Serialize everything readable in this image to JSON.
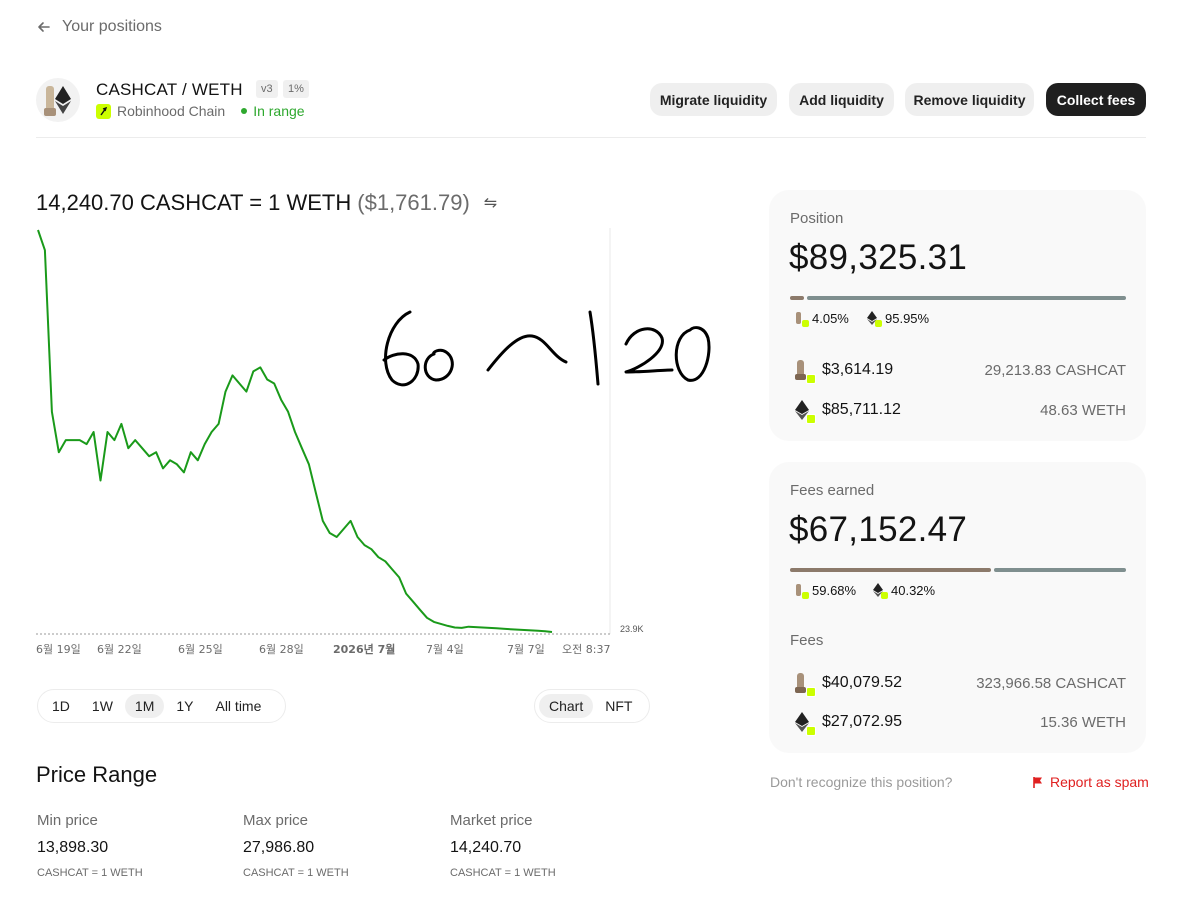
{
  "nav": {
    "back_label": "Your positions"
  },
  "header": {
    "pair": "CASHCAT / WETH",
    "version": "v3",
    "fee_tier": "1%",
    "chain": "Robinhood Chain",
    "status": "In range",
    "buttons": {
      "migrate": "Migrate liquidity",
      "add": "Add liquidity",
      "remove": "Remove liquidity",
      "collect": "Collect fees"
    }
  },
  "price": {
    "rate": "14,240.70 CASHCAT = 1 WETH",
    "usd": "($1,761.79)"
  },
  "chart_data": {
    "type": "line",
    "x_ticks": [
      "6월 19일",
      "6월 22일",
      "6월 25일",
      "6월 28일",
      "2026년 7월",
      "7월 4일",
      "7월 7일",
      "오전 8:37"
    ],
    "right_axis_label": "23.9K",
    "series": [
      {
        "values": [
          100,
          95,
          55,
          45,
          48,
          48,
          48,
          47,
          50,
          38,
          50,
          48,
          52,
          46,
          48,
          46,
          44,
          45,
          41,
          43,
          42,
          40,
          45,
          43,
          47,
          50,
          52,
          60,
          64,
          62,
          60,
          65,
          66,
          63,
          62,
          58,
          55,
          50,
          46,
          42,
          35,
          28,
          25,
          24,
          26,
          28,
          24,
          22,
          21,
          19,
          18,
          16,
          14,
          10,
          8,
          6,
          4,
          3,
          2.5,
          2,
          1.6,
          1.5,
          1.8,
          1.7,
          1.6,
          1.5,
          1.4,
          1.3,
          1.2,
          1.1,
          1.0,
          0.9,
          0.8,
          0.7,
          0.5
        ]
      }
    ],
    "color": "#1a9a1a"
  },
  "timeframes": [
    "1D",
    "1W",
    "1M",
    "1Y",
    "All time"
  ],
  "timeframe_active": "1M",
  "view_toggle": [
    "Chart",
    "NFT"
  ],
  "view_active": "Chart",
  "range": {
    "title": "Price Range",
    "min_label": "Min price",
    "min_value": "13,898.30",
    "max_label": "Max price",
    "max_value": "27,986.80",
    "market_label": "Market price",
    "market_value": "14,240.70",
    "unit": "CASHCAT = 1 WETH"
  },
  "position": {
    "label": "Position",
    "value": "$89,325.31",
    "cashcat_pct": "4.05%",
    "weth_pct": "95.95%",
    "cashcat_share": 0.0405,
    "cashcat_usd": "$3,614.19",
    "cashcat_amount": "29,213.83 CASHCAT",
    "weth_usd": "$85,711.12",
    "weth_amount": "48.63 WETH"
  },
  "fees": {
    "label": "Fees earned",
    "value": "$67,152.47",
    "cashcat_pct": "59.68%",
    "weth_pct": "40.32%",
    "cashcat_share": 0.5968,
    "section_label": "Fees",
    "cashcat_usd": "$40,079.52",
    "cashcat_amount": "323,966.58 CASHCAT",
    "weth_usd": "$27,072.95",
    "weth_amount": "15.36 WETH"
  },
  "footer": {
    "unrecognized": "Don't recognize this position?",
    "report": "Report as spam"
  },
  "colors": {
    "cashcat_bar": "#8c7a6b",
    "weth_bar": "#7f8f8f",
    "accent_green": "#2ea82e",
    "spam_red": "#e02020"
  }
}
